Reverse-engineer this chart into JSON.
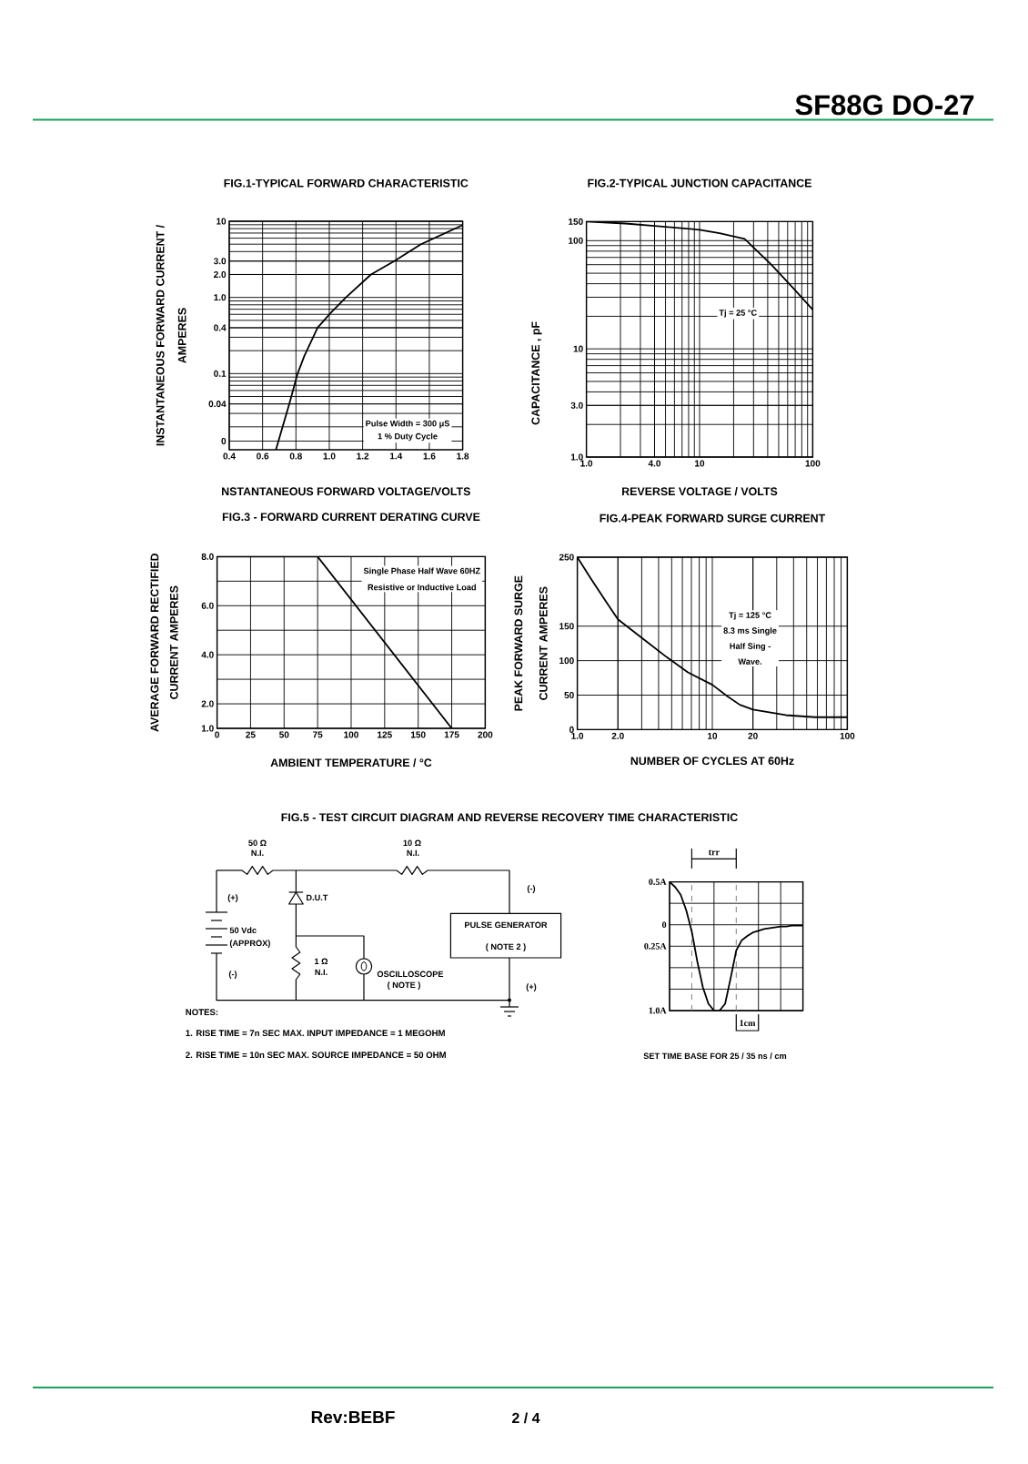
{
  "chart_data": [
    {
      "type": "other",
      "title": "SF88G  DO-27",
      "annotations": [
        "Rev:BEBF",
        "2 / 4"
      ]
    },
    {
      "type": "line",
      "title": "FIG.1-TYPICAL FORWARD CHARACTERISTIC",
      "xlabel": "NSTANTANEOUS FORWARD VOLTAGE/VOLTS",
      "ylabel": "INSTANTANEOUS FORWARD CURRENT / AMPERES",
      "x": [
        0.68,
        0.72,
        0.76,
        0.81,
        0.85,
        0.93,
        1.01,
        1.1,
        1.25,
        1.39,
        1.55,
        1.8
      ],
      "values": [
        0.01,
        0.02,
        0.04,
        0.1,
        0.17,
        0.4,
        0.63,
        1,
        2,
        3,
        5,
        8.9
      ],
      "color": "#000000",
      "xlim": [
        0.4,
        1.8
      ],
      "ylim": [
        0.01,
        10
      ],
      "xticks": [
        0.4,
        0.6,
        0.8,
        {
          "value": 1,
          "label": "1.0"
        },
        1.2,
        1.4,
        1.6,
        1.8
      ],
      "yticks": [
        {
          "value": 0.013,
          "label": "0"
        },
        0.04,
        0.1,
        0.4,
        {
          "value": 1,
          "label": "1.0"
        },
        {
          "value": 2,
          "label": "2.0"
        },
        {
          "value": 3,
          "label": "3.0"
        },
        10
      ],
      "log": "y",
      "grid": true,
      "annotations": [
        "Pulse Width = 300 μS",
        "1 % Duty Cycle"
      ]
    },
    {
      "type": "line",
      "title": "FIG.2-TYPICAL JUNCTION CAPACITANCE",
      "xlabel": "REVERSE VOLTAGE / VOLTS",
      "ylabel": "CAPACITANCE , pF",
      "x": [
        1,
        2.2,
        4,
        10,
        15,
        25,
        43,
        68,
        100
      ],
      "values": [
        150,
        144,
        137,
        126,
        117,
        104,
        60,
        36,
        23
      ],
      "color": "#000000",
      "xlim": [
        1,
        100
      ],
      "ylim": [
        1,
        150
      ],
      "xticks": [
        {
          "value": 1,
          "label": "1.0"
        },
        {
          "value": 4,
          "label": "4.0"
        },
        10,
        100
      ],
      "yticks": [
        {
          "value": 1,
          "label": "1.0"
        },
        {
          "value": 3,
          "label": "3.0"
        },
        10,
        100,
        150
      ],
      "log": "xy",
      "grid": true,
      "annotations": [
        "Tj = 25 °C"
      ]
    },
    {
      "type": "line",
      "title": "FIG.3 - FORWARD CURRENT DERATING CURVE",
      "xlabel": "AMBIENT TEMPERATURE / °C",
      "ylabel": "AVERAGE FORWARD RECTIFIED CURRENT AMPERES",
      "x": [
        0,
        75,
        175
      ],
      "values": [
        8,
        8,
        1
      ],
      "color": "#000000",
      "xlim": [
        0,
        200
      ],
      "ylim": [
        1,
        8
      ],
      "xticks": [
        0,
        25,
        50,
        75,
        100,
        125,
        150,
        175,
        200
      ],
      "yticks": [
        {
          "value": 1,
          "label": "1.0"
        },
        {
          "value": 2,
          "label": "2.0"
        },
        {
          "value": 3,
          "label": null
        },
        {
          "value": 4,
          "label": "4.0"
        },
        {
          "value": 5,
          "label": null
        },
        {
          "value": 6,
          "label": "6.0"
        },
        {
          "value": 7,
          "label": null
        },
        {
          "value": 8,
          "label": "8.0"
        }
      ],
      "grid": true,
      "annotations": [
        "Single Phase Half Wave 60HZ",
        "Resistive or Inductive Load"
      ]
    },
    {
      "type": "line",
      "title": "FIG.4-PEAK FORWARD SURGE CURRENT",
      "xlabel": "NUMBER OF CYCLES AT 60Hz",
      "ylabel": "PEAK FORWARD SURGE CURRENT AMPERES",
      "x": [
        1,
        1.26,
        1.64,
        2,
        3.2,
        4.6,
        6.6,
        10,
        13,
        16,
        20,
        35,
        58,
        100
      ],
      "values": [
        250,
        219,
        185,
        160,
        129,
        105,
        83,
        65,
        48,
        36,
        29,
        21,
        18,
        18
      ],
      "color": "#000000",
      "xlim": [
        1,
        100
      ],
      "ylim": [
        0,
        250
      ],
      "xticks": [
        {
          "value": 1,
          "label": "1.0"
        },
        {
          "value": 2,
          "label": "2.0"
        },
        10,
        20,
        100
      ],
      "yticks": [
        0,
        50,
        100,
        150,
        250
      ],
      "log": "x",
      "grid": true,
      "annotations": [
        "Tj = 125 °C",
        "8.3 ms Single",
        "Half Sing -",
        "Wave."
      ]
    },
    {
      "type": "other",
      "title": "FIG.5 - TEST CIRCUIT DIAGRAM AND REVERSE RECOVERY TIME CHARACTERISTIC",
      "annotations": [
        "50 Ω",
        "N.I.",
        "10 Ω",
        "N.I.",
        "(+)",
        "D.U.T",
        "(-)",
        "50 Vdc",
        "(APPROX)",
        "PULSE GENERATOR",
        "( NOTE 2 )",
        "(-)",
        "1 Ω",
        "N.I.",
        "OSCILLOSCOPE",
        "( NOTE )",
        "(+)",
        "NOTES:",
        "1. RISE TIME = 7n SEC MAX. INPUT IMPEDANCE = 1 MEGOHM",
        "2. RISE TIME = 10n SEC MAX. SOURCE IMPEDANCE = 50 OHM"
      ]
    },
    {
      "type": "line",
      "categories": [
        null,
        null,
        null,
        null,
        null,
        null,
        null,
        null,
        null,
        null,
        null,
        null,
        null,
        null,
        null,
        null,
        null,
        null,
        null,
        null,
        null,
        null,
        null,
        null,
        null
      ],
      "values": [
        0.5,
        0.44,
        0.35,
        0.17,
        -0.08,
        -0.43,
        -0.73,
        -0.92,
        -1,
        -1,
        -0.92,
        -0.62,
        -0.3,
        -0.18,
        -0.13,
        -0.09,
        -0.07,
        -0.05,
        -0.04,
        -0.03,
        -0.02,
        -0.02,
        -0.01,
        -0.01,
        -0.01
      ],
      "color": "#000000",
      "ylim": [
        -1,
        0.5
      ],
      "yticks": [
        {
          "value": -1,
          "label": "1.0A"
        },
        {
          "value": -0.75,
          "label": null
        },
        {
          "value": -0.5,
          "label": null
        },
        {
          "value": -0.25,
          "label": "0.25A"
        },
        {
          "value": 0,
          "label": "0"
        },
        {
          "value": 0.25,
          "label": null
        },
        {
          "value": 0.5,
          "label": "0.5A"
        }
      ],
      "grid": true,
      "tick_labels": "y",
      "annotations": [
        "trr",
        "1cm",
        "SET TIME BASE FOR 25 / 35 ns / cm"
      ]
    }
  ]
}
